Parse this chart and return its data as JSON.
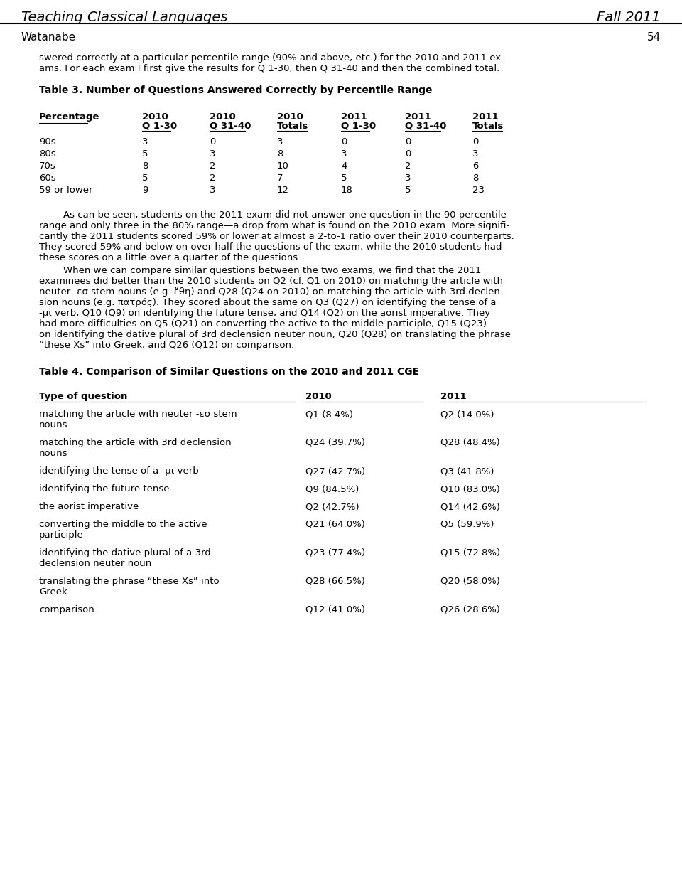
{
  "header_left": "Teaching Classical Languages",
  "header_right": "Fall 2011",
  "subheader_left": "Watanabe",
  "subheader_right": "54",
  "intro_line1": "swered correctly at a particular percentile range (90% and above, etc.) for the 2010 and 2011 ex-",
  "intro_line2": "ams. For each exam I first give the results for Q 1-30, then Q 31-40 and then the combined total.",
  "table3_title": "Table 3. Number of Questions Answered Correctly by Percentile Range",
  "table3_col1_line1": "Percentage",
  "table3_col1_line2": "",
  "table3_cols_line1": [
    "2010",
    "2010",
    "2010",
    "2011",
    "2011",
    "2011"
  ],
  "table3_cols_line2": [
    "Q 1-30",
    "Q 31-40",
    "Totals",
    "Q 1-30",
    "Q 31-40",
    "Totals"
  ],
  "table3_rows": [
    [
      "90s",
      "3",
      "0",
      "3",
      "0",
      "0",
      "0"
    ],
    [
      "80s",
      "5",
      "3",
      "8",
      "3",
      "0",
      "3"
    ],
    [
      "70s",
      "8",
      "2",
      "10",
      "4",
      "2",
      "6"
    ],
    [
      "60s",
      "5",
      "2",
      "7",
      "5",
      "3",
      "8"
    ],
    [
      "59 or lower",
      "9",
      "3",
      "12",
      "18",
      "5",
      "23"
    ]
  ],
  "body1_lines": [
    "        As can be seen, students on the 2011 exam did not answer one question in the 90 percentile",
    "range and only three in the 80% range—a drop from what is found on the 2010 exam. More signifi-",
    "cantly the 2011 students scored 59% or lower at almost a 2-to-1 ratio over their 2010 counterparts.",
    "They scored 59% and below on over half the questions of the exam, while the 2010 students had",
    "these scores on a little over a quarter of the questions."
  ],
  "body2_lines": [
    "        When we can compare similar questions between the two exams, we find that the 2011",
    "examinees did better than the 2010 students on Q2 (cf. Q1 on 2010) on matching the article with",
    "neuter -εσ stem nouns (e.g. ἔθη) and Q28 (Q24 on 2010) on matching the article with 3rd declen-",
    "sion nouns (e.g. πατρός). They scored about the same on Q3 (Q27) on identifying the tense of a",
    "-μι verb, Q10 (Q9) on identifying the future tense, and Q14 (Q2) on the aorist imperative. They",
    "had more difficulties on Q5 (Q21) on converting the active to the middle participle, Q15 (Q23)",
    "on identifying the dative plural of 3rd declension neuter noun, Q20 (Q28) on translating the phrase",
    "“these Xs” into Greek, and Q26 (Q12) on comparison."
  ],
  "table4_title": "Table 4. Comparison of Similar Questions on the 2010 and 2011 CGE",
  "table4_col_headers": [
    "Type of question",
    "2010",
    "2011"
  ],
  "table4_rows": [
    [
      "matching the article with neuter -εσ stem",
      "nouns",
      "Q1 (8.4%)",
      "Q2 (14.0%)"
    ],
    [
      "matching the article with 3rd declension",
      "nouns",
      "Q24 (39.7%)",
      "Q28 (48.4%)"
    ],
    [
      "identifying the tense of a -μι verb",
      "",
      "Q27 (42.7%)",
      "Q3 (41.8%)"
    ],
    [
      "identifying the future tense",
      "",
      "Q9 (84.5%)",
      "Q10 (83.0%)"
    ],
    [
      "the aorist imperative",
      "",
      "Q2 (42.7%)",
      "Q14 (42.6%)"
    ],
    [
      "converting the middle to the active",
      "participle",
      "Q21 (64.0%)",
      "Q5 (59.9%)"
    ],
    [
      "identifying the dative plural of a 3rd",
      "declension neuter noun",
      "Q23 (77.4%)",
      "Q15 (72.8%)"
    ],
    [
      "translating the phrase “these Xs” into",
      "Greek",
      "Q28 (66.5%)",
      "Q20 (58.0%)"
    ],
    [
      "comparison",
      "",
      "Q12 (41.0%)",
      "Q26 (28.6%)"
    ]
  ],
  "bg_color": "#ffffff",
  "text_color": "#000000"
}
